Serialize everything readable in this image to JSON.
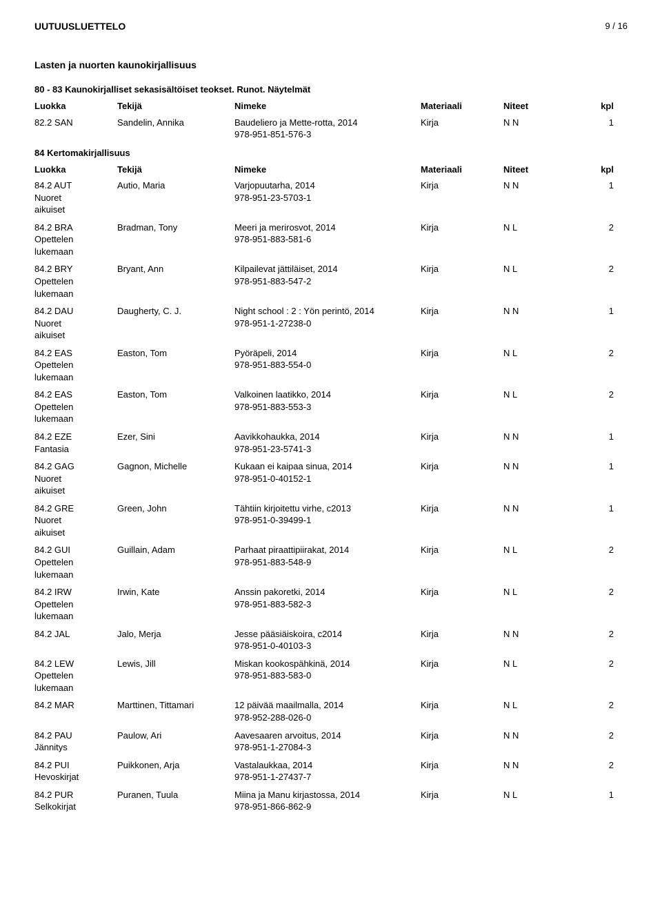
{
  "header": {
    "title": "UUTUUSLUETTELO",
    "page": "9 / 16"
  },
  "section": "Lasten ja nuorten kaunokirjallisuus",
  "subsection1": {
    "heading": "80 - 83 Kaunokirjalliset sekasisältöiset teokset. Runot. Näytelmät",
    "columns": {
      "c1": "Luokka",
      "c2": "Tekijä",
      "c3": "Nimeke",
      "c4": "Materiaali",
      "c5": "Niteet",
      "c6": "kpl"
    },
    "rows": [
      {
        "luokka": "82.2 SAN",
        "sub": "",
        "tekija": "Sandelin, Annika",
        "nimeke": "Baudeliero ja Mette-rotta, 2014",
        "isbn": "978-951-851-576-3",
        "materiaali": "Kirja",
        "niteet": "N N",
        "kpl": "1"
      }
    ]
  },
  "subsection2": {
    "heading": "84 Kertomakirjallisuus",
    "columns": {
      "c1": "Luokka",
      "c2": "Tekijä",
      "c3": "Nimeke",
      "c4": "Materiaali",
      "c5": "Niteet",
      "c6": "kpl"
    },
    "rows": [
      {
        "luokka": "84.2 AUT",
        "sub": "Nuoret aikuiset",
        "tekija": "Autio, Maria",
        "nimeke": "Varjopuutarha, 2014",
        "isbn": "978-951-23-5703-1",
        "materiaali": "Kirja",
        "niteet": "N N",
        "kpl": "1"
      },
      {
        "luokka": "84.2 BRA",
        "sub": "Opettelen lukemaan",
        "tekija": "Bradman, Tony",
        "nimeke": "Meeri ja merirosvot, 2014",
        "isbn": "978-951-883-581-6",
        "materiaali": "Kirja",
        "niteet": "N L",
        "kpl": "2"
      },
      {
        "luokka": "84.2 BRY",
        "sub": "Opettelen lukemaan",
        "tekija": "Bryant, Ann",
        "nimeke": "Kilpailevat jättiläiset, 2014",
        "isbn": "978-951-883-547-2",
        "materiaali": "Kirja",
        "niteet": "N L",
        "kpl": "2"
      },
      {
        "luokka": "84.2 DAU",
        "sub": "Nuoret aikuiset",
        "tekija": "Daugherty, C. J.",
        "nimeke": "Night school : 2 : Yön perintö, 2014",
        "isbn": "978-951-1-27238-0",
        "materiaali": "Kirja",
        "niteet": "N N",
        "kpl": "1"
      },
      {
        "luokka": "84.2 EAS",
        "sub": "Opettelen lukemaan",
        "tekija": "Easton, Tom",
        "nimeke": "Pyöräpeli, 2014",
        "isbn": "978-951-883-554-0",
        "materiaali": "Kirja",
        "niteet": "N L",
        "kpl": "2"
      },
      {
        "luokka": "84.2 EAS",
        "sub": "Opettelen lukemaan",
        "tekija": "Easton, Tom",
        "nimeke": "Valkoinen laatikko, 2014",
        "isbn": "978-951-883-553-3",
        "materiaali": "Kirja",
        "niteet": "N L",
        "kpl": "2"
      },
      {
        "luokka": "84.2 EZE",
        "sub": "Fantasia",
        "tekija": "Ezer, Sini",
        "nimeke": "Aavikkohaukka, 2014",
        "isbn": "978-951-23-5741-3",
        "materiaali": "Kirja",
        "niteet": "N N",
        "kpl": "1"
      },
      {
        "luokka": "84.2 GAG",
        "sub": "Nuoret aikuiset",
        "tekija": "Gagnon, Michelle",
        "nimeke": "Kukaan ei kaipaa sinua, 2014",
        "isbn": "978-951-0-40152-1",
        "materiaali": "Kirja",
        "niteet": "N N",
        "kpl": "1"
      },
      {
        "luokka": "84.2 GRE",
        "sub": "Nuoret aikuiset",
        "tekija": "Green, John",
        "nimeke": "Tähtiin kirjoitettu virhe, c2013",
        "isbn": "978-951-0-39499-1",
        "materiaali": "Kirja",
        "niteet": "N N",
        "kpl": "1"
      },
      {
        "luokka": "84.2 GUI",
        "sub": "Opettelen lukemaan",
        "tekija": "Guillain, Adam",
        "nimeke": "Parhaat piraattipiirakat, 2014",
        "isbn": "978-951-883-548-9",
        "materiaali": "Kirja",
        "niteet": "N L",
        "kpl": "2"
      },
      {
        "luokka": "84.2 IRW",
        "sub": "Opettelen lukemaan",
        "tekija": "Irwin, Kate",
        "nimeke": "Anssin pakoretki, 2014",
        "isbn": "978-951-883-582-3",
        "materiaali": "Kirja",
        "niteet": "N L",
        "kpl": "2"
      },
      {
        "luokka": "84.2 JAL",
        "sub": "",
        "tekija": "Jalo, Merja",
        "nimeke": "Jesse pääsiäiskoira, c2014",
        "isbn": "978-951-0-40103-3",
        "materiaali": "Kirja",
        "niteet": "N N",
        "kpl": "2"
      },
      {
        "luokka": "84.2 LEW",
        "sub": "Opettelen lukemaan",
        "tekija": "Lewis, Jill",
        "nimeke": "Miskan kookospähkinä, 2014",
        "isbn": "978-951-883-583-0",
        "materiaali": "Kirja",
        "niteet": "N L",
        "kpl": "2"
      },
      {
        "luokka": "84.2 MAR",
        "sub": "",
        "tekija": "Marttinen, Tittamari",
        "nimeke": "12 päivää maailmalla, 2014",
        "isbn": "978-952-288-026-0",
        "materiaali": "Kirja",
        "niteet": "N L",
        "kpl": "2"
      },
      {
        "luokka": "84.2 PAU",
        "sub": "Jännitys",
        "tekija": "Paulow, Ari",
        "nimeke": "Aavesaaren arvoitus, 2014",
        "isbn": "978-951-1-27084-3",
        "materiaali": "Kirja",
        "niteet": "N N",
        "kpl": "2"
      },
      {
        "luokka": "84.2 PUI",
        "sub": "Hevoskirjat",
        "tekija": "Puikkonen, Arja",
        "nimeke": "Vastalaukkaa, 2014",
        "isbn": "978-951-1-27437-7",
        "materiaali": "Kirja",
        "niteet": "N N",
        "kpl": "2"
      },
      {
        "luokka": "84.2 PUR",
        "sub": "Selkokirjat",
        "tekija": "Puranen, Tuula",
        "nimeke": "Miina ja Manu kirjastossa, 2014",
        "isbn": "978-951-866-862-9",
        "materiaali": "Kirja",
        "niteet": "N L",
        "kpl": "1"
      }
    ]
  }
}
